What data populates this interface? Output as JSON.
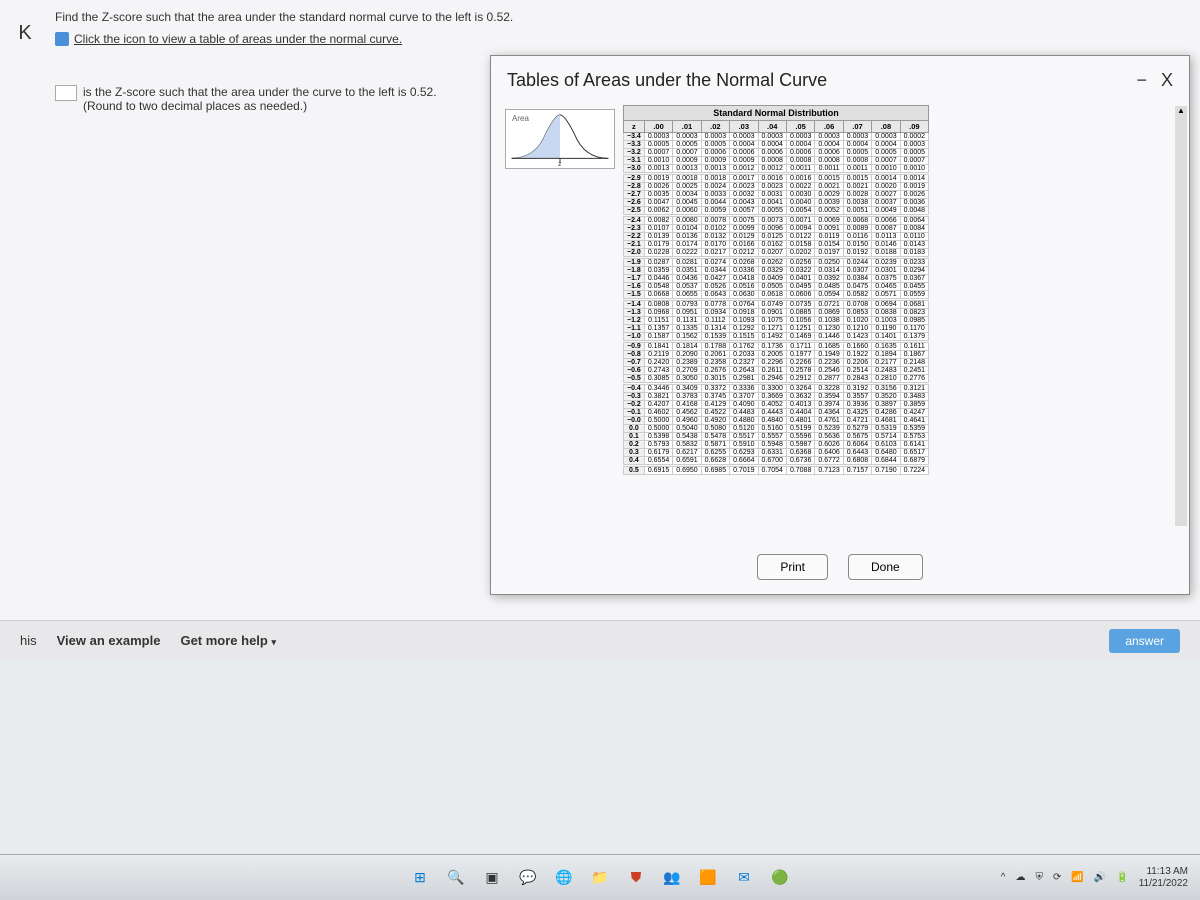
{
  "question": {
    "prompt": "Find the Z-score such that the area under the standard normal curve to the left is 0.52.",
    "table_link": "Click the icon to view a table of areas under the normal curve.",
    "answer_prefix": "is the Z-score such that the area under the curve to the left is 0.52.",
    "round_hint": "(Round to two decimal places as needed.)"
  },
  "modal": {
    "title": "Tables of Areas under the Normal Curve",
    "minus_icon": "−",
    "close_icon": "X",
    "table_title": "Standard Normal Distribution",
    "area_label": "Area",
    "col_headers": [
      "z",
      ".00",
      ".01",
      ".02",
      ".03",
      ".04",
      ".05",
      ".06",
      ".07",
      ".08",
      ".09"
    ],
    "groups": [
      [
        [
          "−3.4",
          "0.0003",
          "0.0003",
          "0.0003",
          "0.0003",
          "0.0003",
          "0.0003",
          "0.0003",
          "0.0003",
          "0.0003",
          "0.0002"
        ],
        [
          "−3.3",
          "0.0005",
          "0.0005",
          "0.0005",
          "0.0004",
          "0.0004",
          "0.0004",
          "0.0004",
          "0.0004",
          "0.0004",
          "0.0003"
        ],
        [
          "−3.2",
          "0.0007",
          "0.0007",
          "0.0006",
          "0.0006",
          "0.0006",
          "0.0006",
          "0.0006",
          "0.0005",
          "0.0005",
          "0.0005"
        ],
        [
          "−3.1",
          "0.0010",
          "0.0009",
          "0.0009",
          "0.0009",
          "0.0008",
          "0.0008",
          "0.0008",
          "0.0008",
          "0.0007",
          "0.0007"
        ],
        [
          "−3.0",
          "0.0013",
          "0.0013",
          "0.0013",
          "0.0012",
          "0.0012",
          "0.0011",
          "0.0011",
          "0.0011",
          "0.0010",
          "0.0010"
        ]
      ],
      [
        [
          "−2.9",
          "0.0019",
          "0.0018",
          "0.0018",
          "0.0017",
          "0.0016",
          "0.0016",
          "0.0015",
          "0.0015",
          "0.0014",
          "0.0014"
        ],
        [
          "−2.8",
          "0.0026",
          "0.0025",
          "0.0024",
          "0.0023",
          "0.0023",
          "0.0022",
          "0.0021",
          "0.0021",
          "0.0020",
          "0.0019"
        ],
        [
          "−2.7",
          "0.0035",
          "0.0034",
          "0.0033",
          "0.0032",
          "0.0031",
          "0.0030",
          "0.0029",
          "0.0028",
          "0.0027",
          "0.0026"
        ],
        [
          "−2.6",
          "0.0047",
          "0.0045",
          "0.0044",
          "0.0043",
          "0.0041",
          "0.0040",
          "0.0039",
          "0.0038",
          "0.0037",
          "0.0036"
        ],
        [
          "−2.5",
          "0.0062",
          "0.0060",
          "0.0059",
          "0.0057",
          "0.0055",
          "0.0054",
          "0.0052",
          "0.0051",
          "0.0049",
          "0.0048"
        ]
      ],
      [
        [
          "−2.4",
          "0.0082",
          "0.0080",
          "0.0078",
          "0.0075",
          "0.0073",
          "0.0071",
          "0.0069",
          "0.0068",
          "0.0066",
          "0.0064"
        ],
        [
          "−2.3",
          "0.0107",
          "0.0104",
          "0.0102",
          "0.0099",
          "0.0096",
          "0.0094",
          "0.0091",
          "0.0089",
          "0.0087",
          "0.0084"
        ],
        [
          "−2.2",
          "0.0139",
          "0.0136",
          "0.0132",
          "0.0129",
          "0.0125",
          "0.0122",
          "0.0119",
          "0.0116",
          "0.0113",
          "0.0110"
        ],
        [
          "−2.1",
          "0.0179",
          "0.0174",
          "0.0170",
          "0.0166",
          "0.0162",
          "0.0158",
          "0.0154",
          "0.0150",
          "0.0146",
          "0.0143"
        ],
        [
          "−2.0",
          "0.0228",
          "0.0222",
          "0.0217",
          "0.0212",
          "0.0207",
          "0.0202",
          "0.0197",
          "0.0192",
          "0.0188",
          "0.0183"
        ]
      ],
      [
        [
          "−1.9",
          "0.0287",
          "0.0281",
          "0.0274",
          "0.0268",
          "0.0262",
          "0.0256",
          "0.0250",
          "0.0244",
          "0.0239",
          "0.0233"
        ],
        [
          "−1.8",
          "0.0359",
          "0.0351",
          "0.0344",
          "0.0336",
          "0.0329",
          "0.0322",
          "0.0314",
          "0.0307",
          "0.0301",
          "0.0294"
        ],
        [
          "−1.7",
          "0.0446",
          "0.0436",
          "0.0427",
          "0.0418",
          "0.0409",
          "0.0401",
          "0.0392",
          "0.0384",
          "0.0375",
          "0.0367"
        ],
        [
          "−1.6",
          "0.0548",
          "0.0537",
          "0.0526",
          "0.0516",
          "0.0505",
          "0.0495",
          "0.0485",
          "0.0475",
          "0.0465",
          "0.0455"
        ],
        [
          "−1.5",
          "0.0668",
          "0.0655",
          "0.0643",
          "0.0630",
          "0.0618",
          "0.0606",
          "0.0594",
          "0.0582",
          "0.0571",
          "0.0559"
        ]
      ],
      [
        [
          "−1.4",
          "0.0808",
          "0.0793",
          "0.0778",
          "0.0764",
          "0.0749",
          "0.0735",
          "0.0721",
          "0.0708",
          "0.0694",
          "0.0681"
        ],
        [
          "−1.3",
          "0.0968",
          "0.0951",
          "0.0934",
          "0.0918",
          "0.0901",
          "0.0885",
          "0.0869",
          "0.0853",
          "0.0838",
          "0.0823"
        ],
        [
          "−1.2",
          "0.1151",
          "0.1131",
          "0.1112",
          "0.1093",
          "0.1075",
          "0.1056",
          "0.1038",
          "0.1020",
          "0.1003",
          "0.0985"
        ],
        [
          "−1.1",
          "0.1357",
          "0.1335",
          "0.1314",
          "0.1292",
          "0.1271",
          "0.1251",
          "0.1230",
          "0.1210",
          "0.1190",
          "0.1170"
        ],
        [
          "−1.0",
          "0.1587",
          "0.1562",
          "0.1539",
          "0.1515",
          "0.1492",
          "0.1469",
          "0.1446",
          "0.1423",
          "0.1401",
          "0.1379"
        ]
      ],
      [
        [
          "−0.9",
          "0.1841",
          "0.1814",
          "0.1788",
          "0.1762",
          "0.1736",
          "0.1711",
          "0.1685",
          "0.1660",
          "0.1635",
          "0.1611"
        ],
        [
          "−0.8",
          "0.2119",
          "0.2090",
          "0.2061",
          "0.2033",
          "0.2005",
          "0.1977",
          "0.1949",
          "0.1922",
          "0.1894",
          "0.1867"
        ],
        [
          "−0.7",
          "0.2420",
          "0.2389",
          "0.2358",
          "0.2327",
          "0.2296",
          "0.2266",
          "0.2236",
          "0.2206",
          "0.2177",
          "0.2148"
        ],
        [
          "−0.6",
          "0.2743",
          "0.2709",
          "0.2676",
          "0.2643",
          "0.2611",
          "0.2578",
          "0.2546",
          "0.2514",
          "0.2483",
          "0.2451"
        ],
        [
          "−0.5",
          "0.3085",
          "0.3050",
          "0.3015",
          "0.2981",
          "0.2946",
          "0.2912",
          "0.2877",
          "0.2843",
          "0.2810",
          "0.2776"
        ]
      ],
      [
        [
          "−0.4",
          "0.3446",
          "0.3409",
          "0.3372",
          "0.3336",
          "0.3300",
          "0.3264",
          "0.3228",
          "0.3192",
          "0.3156",
          "0.3121"
        ],
        [
          "−0.3",
          "0.3821",
          "0.3783",
          "0.3745",
          "0.3707",
          "0.3669",
          "0.3632",
          "0.3594",
          "0.3557",
          "0.3520",
          "0.3483"
        ],
        [
          "−0.2",
          "0.4207",
          "0.4168",
          "0.4129",
          "0.4090",
          "0.4052",
          "0.4013",
          "0.3974",
          "0.3936",
          "0.3897",
          "0.3859"
        ],
        [
          "−0.1",
          "0.4602",
          "0.4562",
          "0.4522",
          "0.4483",
          "0.4443",
          "0.4404",
          "0.4364",
          "0.4325",
          "0.4286",
          "0.4247"
        ],
        [
          "−0.0",
          "0.5000",
          "0.4960",
          "0.4920",
          "0.4880",
          "0.4840",
          "0.4801",
          "0.4761",
          "0.4721",
          "0.4681",
          "0.4641"
        ],
        [
          "0.0",
          "0.5000",
          "0.5040",
          "0.5080",
          "0.5120",
          "0.5160",
          "0.5199",
          "0.5239",
          "0.5279",
          "0.5319",
          "0.5359"
        ],
        [
          "0.1",
          "0.5398",
          "0.5438",
          "0.5478",
          "0.5517",
          "0.5557",
          "0.5596",
          "0.5636",
          "0.5675",
          "0.5714",
          "0.5753"
        ],
        [
          "0.2",
          "0.5793",
          "0.5832",
          "0.5871",
          "0.5910",
          "0.5948",
          "0.5987",
          "0.6026",
          "0.6064",
          "0.6103",
          "0.6141"
        ],
        [
          "0.3",
          "0.6179",
          "0.6217",
          "0.6255",
          "0.6293",
          "0.6331",
          "0.6368",
          "0.6406",
          "0.6443",
          "0.6480",
          "0.6517"
        ],
        [
          "0.4",
          "0.6554",
          "0.6591",
          "0.6628",
          "0.6664",
          "0.6700",
          "0.6736",
          "0.6772",
          "0.6808",
          "0.6844",
          "0.6879"
        ]
      ],
      [
        [
          "0.5",
          "0.6915",
          "0.6950",
          "0.6985",
          "0.7019",
          "0.7054",
          "0.7088",
          "0.7123",
          "0.7157",
          "0.7190",
          "0.7224"
        ]
      ]
    ],
    "print_btn": "Print",
    "done_btn": "Done"
  },
  "helpbar": {
    "this": "his",
    "example": "View an example",
    "more": "Get more help",
    "answer": "answer"
  },
  "taskbar": {
    "time": "11:13 AM",
    "date": "11/21/2022",
    "icons": [
      {
        "color": "#0078d4",
        "glyph": "⊞"
      },
      {
        "color": "#555",
        "glyph": "🔍"
      },
      {
        "color": "#333",
        "glyph": "▣"
      },
      {
        "color": "#0078d4",
        "glyph": "💬"
      },
      {
        "color": "#0078d4",
        "glyph": "🌐"
      },
      {
        "color": "#ffb900",
        "glyph": "📁"
      },
      {
        "color": "#cc4125",
        "glyph": "⛊"
      },
      {
        "color": "#6264a7",
        "glyph": "👥"
      },
      {
        "color": "#d83b01",
        "glyph": "🟧"
      },
      {
        "color": "#0078d4",
        "glyph": "✉"
      },
      {
        "color": "#0f9d58",
        "glyph": "🟢"
      }
    ]
  }
}
